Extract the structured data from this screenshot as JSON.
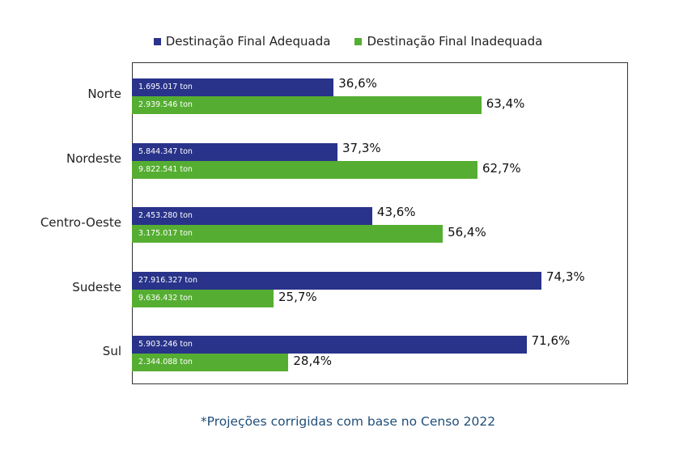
{
  "chart_data": {
    "type": "bar",
    "orientation": "horizontal",
    "categories": [
      "Norte",
      "Nordeste",
      "Centro-Oeste",
      "Sudeste",
      "Sul"
    ],
    "series": [
      {
        "name": "Destinação Final Adequada",
        "color": "#29338a",
        "values": [
          36.6,
          37.3,
          43.6,
          74.3,
          71.6
        ],
        "labels": [
          "36,6%",
          "37,3%",
          "43,6%",
          "74,3%",
          "71,6%"
        ],
        "tons": [
          "1.695.017 ton",
          "5.844.347 ton",
          "2.453.280 ton",
          "27.916.327 ton",
          "5.903.246 ton"
        ]
      },
      {
        "name": "Destinação Final Inadequada",
        "color": "#55ae31",
        "values": [
          63.4,
          62.7,
          56.4,
          25.7,
          28.4
        ],
        "labels": [
          "63,4%",
          "62,7%",
          "56,4%",
          "25,7%",
          "28,4%"
        ],
        "tons": [
          "2.939.546 ton",
          "9.822.541 ton",
          "3.175.017 ton",
          "9.636.432 ton",
          "2.344.088 ton"
        ]
      }
    ],
    "xlim": [
      0,
      90
    ],
    "legend": "top-center",
    "grid": false
  },
  "footnote": "*Projeções corrigidas com base no Censo 2022"
}
